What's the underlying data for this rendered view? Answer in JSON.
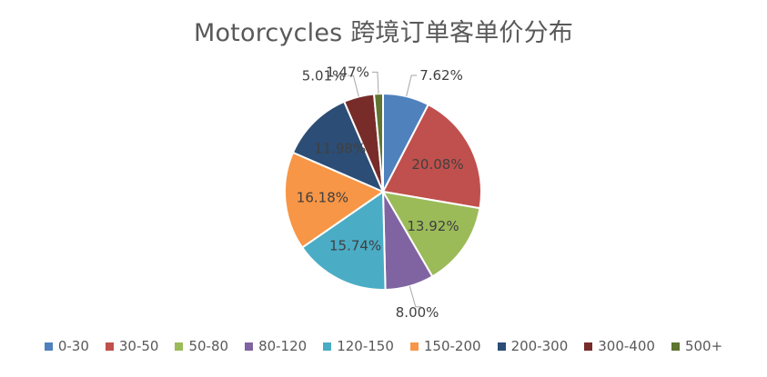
{
  "chart_data": {
    "type": "pie",
    "title": "Motorcycles 跨境订单客单价分布",
    "categories": [
      "0-30",
      "30-50",
      "50-80",
      "80-120",
      "120-150",
      "150-200",
      "200-300",
      "300-400",
      "500+"
    ],
    "values": [
      7.62,
      20.08,
      13.92,
      8.0,
      15.74,
      16.18,
      11.98,
      5.01,
      1.47
    ],
    "data_labels": [
      "7.62%",
      "20.08%",
      "13.92%",
      "8.00%",
      "15.74%",
      "16.18%",
      "11.98%",
      "5.01%",
      "1.47%"
    ],
    "colors": [
      "#4F81BD",
      "#C0504D",
      "#9BBB59",
      "#8064A2",
      "#4BACC6",
      "#F79646",
      "#2C4D75",
      "#772C2A",
      "#5F7530"
    ],
    "legend_position": "bottom",
    "start_angle": "12 o'clock, clockwise"
  }
}
